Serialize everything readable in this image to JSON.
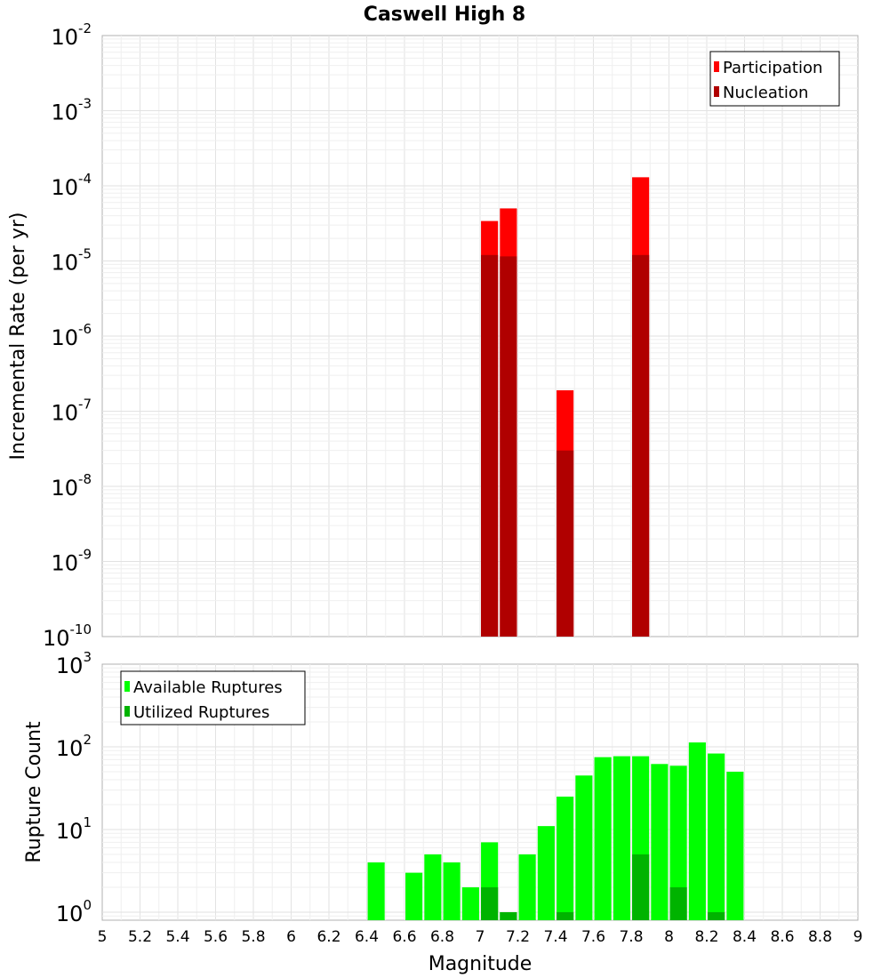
{
  "chart_data": [
    {
      "type": "bar",
      "title": "Caswell High 8",
      "ylabel": "Incremental Rate (per yr)",
      "xlabel": "",
      "xlim": [
        5,
        9
      ],
      "ylim": [
        1e-10,
        0.01
      ],
      "yscale": "log",
      "yticks": [
        {
          "base": "10",
          "exp": "-2"
        },
        {
          "base": "10",
          "exp": "-3"
        },
        {
          "base": "10",
          "exp": "-4"
        },
        {
          "base": "10",
          "exp": "-5"
        },
        {
          "base": "10",
          "exp": "-6"
        },
        {
          "base": "10",
          "exp": "-7"
        },
        {
          "base": "10",
          "exp": "-8"
        },
        {
          "base": "10",
          "exp": "-9"
        },
        {
          "base": "10",
          "exp": "-10"
        }
      ],
      "grid": true,
      "legend_position": "top-right",
      "bar_width": 0.09,
      "series": [
        {
          "name": "Participation",
          "color": "#ff0000",
          "points": [
            {
              "x": 7.05,
              "y": 3.4e-05
            },
            {
              "x": 7.15,
              "y": 5e-05
            },
            {
              "x": 7.45,
              "y": 1.9e-07
            },
            {
              "x": 7.85,
              "y": 0.00013
            }
          ]
        },
        {
          "name": "Nucleation",
          "color": "#b00000",
          "points": [
            {
              "x": 7.05,
              "y": 1.2e-05
            },
            {
              "x": 7.15,
              "y": 1.15e-05
            },
            {
              "x": 7.45,
              "y": 3e-08
            },
            {
              "x": 7.85,
              "y": 1.2e-05
            }
          ]
        }
      ]
    },
    {
      "type": "bar",
      "title": "",
      "ylabel": "Rupture Count",
      "xlabel": "Magnitude",
      "xlim": [
        5,
        9
      ],
      "ylim": [
        0.8,
        1000
      ],
      "yscale": "log",
      "yticks": [
        {
          "value": 1000,
          "base": "10",
          "exp": "3"
        },
        {
          "value": 100,
          "base": "10",
          "exp": "2"
        },
        {
          "value": 10,
          "base": "10",
          "exp": "1"
        },
        {
          "value": 1,
          "base": "10",
          "exp": "0"
        }
      ],
      "xticks": [
        "5",
        "5.2",
        "5.4",
        "5.6",
        "5.8",
        "6",
        "6.2",
        "6.4",
        "6.6",
        "6.8",
        "7",
        "7.2",
        "7.4",
        "7.6",
        "7.8",
        "8",
        "8.2",
        "8.4",
        "8.6",
        "8.8",
        "9"
      ],
      "grid": true,
      "legend_position": "top-left",
      "bar_width": 0.09,
      "series": [
        {
          "name": "Available Ruptures",
          "color": "#00ff00",
          "points": [
            {
              "x": 6.45,
              "y": 4
            },
            {
              "x": 6.65,
              "y": 3
            },
            {
              "x": 6.75,
              "y": 5
            },
            {
              "x": 6.85,
              "y": 4
            },
            {
              "x": 6.95,
              "y": 2
            },
            {
              "x": 7.05,
              "y": 7
            },
            {
              "x": 7.15,
              "y": 1
            },
            {
              "x": 7.25,
              "y": 5
            },
            {
              "x": 7.35,
              "y": 11
            },
            {
              "x": 7.45,
              "y": 25
            },
            {
              "x": 7.55,
              "y": 45
            },
            {
              "x": 7.65,
              "y": 75
            },
            {
              "x": 7.75,
              "y": 77
            },
            {
              "x": 7.85,
              "y": 77
            },
            {
              "x": 7.95,
              "y": 62
            },
            {
              "x": 8.05,
              "y": 59
            },
            {
              "x": 8.15,
              "y": 113
            },
            {
              "x": 8.25,
              "y": 83
            },
            {
              "x": 8.35,
              "y": 50
            }
          ]
        },
        {
          "name": "Utilized Ruptures",
          "color": "#00b300",
          "points": [
            {
              "x": 7.05,
              "y": 2
            },
            {
              "x": 7.15,
              "y": 1
            },
            {
              "x": 7.45,
              "y": 1
            },
            {
              "x": 7.85,
              "y": 5
            },
            {
              "x": 8.05,
              "y": 2
            },
            {
              "x": 8.25,
              "y": 1
            }
          ]
        }
      ]
    }
  ]
}
